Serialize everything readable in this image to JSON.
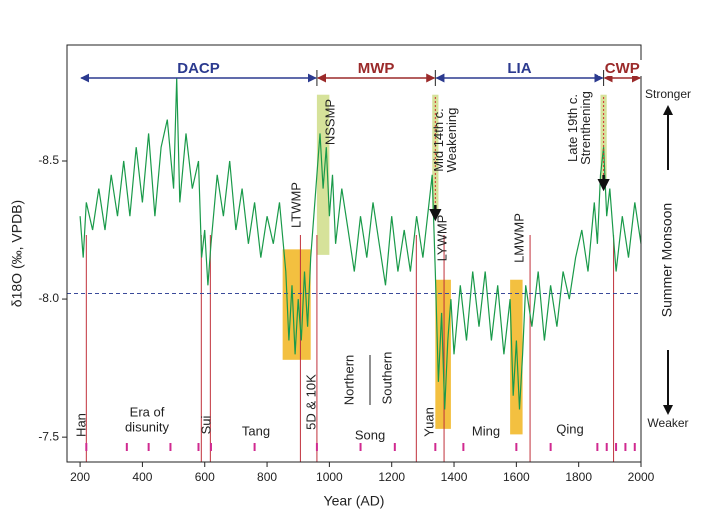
{
  "chart_data": {
    "type": "line",
    "y_label": "δ18O (‰, VPDB)",
    "x_label": "Year (AD)",
    "right_labels": {
      "top": "Stronger",
      "middle": "Summer Monsoon",
      "bottom": "Weaker"
    },
    "xlim": [
      158,
      2000
    ],
    "xticks": [
      200,
      400,
      600,
      800,
      1000,
      1200,
      1400,
      1600,
      1800,
      2000
    ],
    "ylim": [
      -7.41,
      -8.92
    ],
    "yticks": [
      -8.5,
      {
        "value": -8,
        "label": "-8.0"
      },
      -7.5
    ],
    "reference_line": -8.02,
    "x": [
      200,
      210,
      220,
      240,
      260,
      280,
      300,
      320,
      340,
      360,
      380,
      400,
      420,
      440,
      460,
      480,
      500,
      510,
      520,
      540,
      560,
      580,
      590,
      600,
      610,
      620,
      640,
      660,
      680,
      700,
      720,
      740,
      760,
      780,
      800,
      820,
      840,
      860,
      870,
      880,
      890,
      900,
      910,
      920,
      930,
      940,
      950,
      960,
      970,
      980,
      990,
      1000,
      1010,
      1020,
      1040,
      1060,
      1080,
      1100,
      1120,
      1140,
      1160,
      1180,
      1200,
      1220,
      1240,
      1260,
      1280,
      1300,
      1320,
      1330,
      1340,
      1350,
      1360,
      1370,
      1380,
      1390,
      1400,
      1420,
      1440,
      1460,
      1480,
      1500,
      1520,
      1540,
      1560,
      1580,
      1590,
      1600,
      1610,
      1620,
      1630,
      1650,
      1670,
      1690,
      1710,
      1730,
      1750,
      1770,
      1790,
      1810,
      1830,
      1850,
      1860,
      1870,
      1880,
      1890,
      1900,
      1920,
      1940,
      1960,
      1980,
      2000
    ],
    "series": [
      {
        "color": "#1a9a4a",
        "values": [
          -8.3,
          -8.15,
          -8.35,
          -8.25,
          -8.4,
          -8.25,
          -8.45,
          -8.3,
          -8.5,
          -8.3,
          -8.55,
          -8.35,
          -8.6,
          -8.3,
          -8.55,
          -8.65,
          -8.4,
          -8.8,
          -8.35,
          -8.6,
          -8.4,
          -8.5,
          -8.15,
          -8.25,
          -8.05,
          -8.2,
          -8.45,
          -8.3,
          -8.5,
          -8.25,
          -8.4,
          -8.2,
          -8.35,
          -8.15,
          -8.3,
          -8.2,
          -8.35,
          -8.1,
          -7.85,
          -8.05,
          -7.8,
          -8.0,
          -7.85,
          -8.1,
          -7.9,
          -8.15,
          -8.3,
          -8.45,
          -8.6,
          -8.4,
          -8.55,
          -8.3,
          -8.45,
          -8.2,
          -8.4,
          -8.25,
          -8.1,
          -8.3,
          -8.15,
          -8.35,
          -8.2,
          -8.05,
          -8.3,
          -8.1,
          -8.25,
          -8.1,
          -8.3,
          -8.15,
          -8.35,
          -8.45,
          -8.1,
          -7.7,
          -7.95,
          -7.6,
          -7.85,
          -8.0,
          -7.8,
          -8.05,
          -7.85,
          -8.1,
          -7.9,
          -8.1,
          -7.85,
          -8.05,
          -7.8,
          -8.0,
          -7.65,
          -7.85,
          -7.6,
          -7.8,
          -8.05,
          -7.9,
          -8.1,
          -7.85,
          -8.05,
          -7.9,
          -8.1,
          -8.0,
          -8.15,
          -8.25,
          -8.1,
          -8.35,
          -8.2,
          -8.45,
          -8.55,
          -8.3,
          -8.4,
          -8.1,
          -8.3,
          -8.15,
          -8.35,
          -8.2
        ]
      }
    ],
    "periods": [
      {
        "label": "DACP",
        "start": 200,
        "end": 960,
        "color": "#2b3a8f"
      },
      {
        "label": "MWP",
        "start": 960,
        "end": 1340,
        "color": "#9b2a2a"
      },
      {
        "label": "LIA",
        "start": 1340,
        "end": 1880,
        "color": "#2b3a8f"
      },
      {
        "label": "CWP",
        "start": 1880,
        "end": 2000,
        "color": "#9b2a2a"
      }
    ],
    "events": [
      {
        "label": [
          "LTWMP"
        ],
        "x": [
          850,
          940
        ],
        "y": [
          -8.18,
          -7.78
        ],
        "color": "#f3c040"
      },
      {
        "label": [
          "NSSMP"
        ],
        "x": [
          960,
          1000
        ],
        "y": [
          -8.74,
          -8.16
        ],
        "color": "#d6e29a"
      },
      {
        "label": [
          "Mid 14th c.",
          "Weakening"
        ],
        "x": [
          1330,
          1350
        ],
        "y": [
          -8.74,
          -8.3
        ],
        "color": "#d6e29a"
      },
      {
        "label": [
          "LYWMP"
        ],
        "x": [
          1340,
          1390
        ],
        "y": [
          -8.07,
          -7.53
        ],
        "color": "#f3c040"
      },
      {
        "label": [
          "LMWMP"
        ],
        "x": [
          1580,
          1620
        ],
        "y": [
          -8.07,
          -7.51
        ],
        "color": "#f3c040"
      },
      {
        "label": [
          "Late 19th c.",
          "Strenthening"
        ],
        "x": [
          1870,
          1890
        ],
        "y": [
          -8.74,
          -8.42
        ],
        "color": "#d6e29a"
      }
    ],
    "boundaries": [
      220,
      589,
      618,
      907,
      960,
      1279,
      1368,
      1644,
      1912
    ],
    "dynasties": [
      [
        "Han"
      ],
      [
        "Era of",
        "disunity"
      ],
      [
        "Sui"
      ],
      [
        "Tang"
      ],
      [
        "5D & 10K"
      ],
      [
        "Northern"
      ],
      [
        "Southern"
      ],
      [
        "Song"
      ],
      [
        "Yuan"
      ],
      [
        "Ming"
      ],
      [
        "Qing"
      ]
    ],
    "reign_ticks": [
      220,
      350,
      420,
      490,
      580,
      620,
      760,
      960,
      1100,
      1210,
      1340,
      1430,
      1600,
      1710,
      1860,
      1890,
      1920,
      1950,
      1980
    ]
  }
}
